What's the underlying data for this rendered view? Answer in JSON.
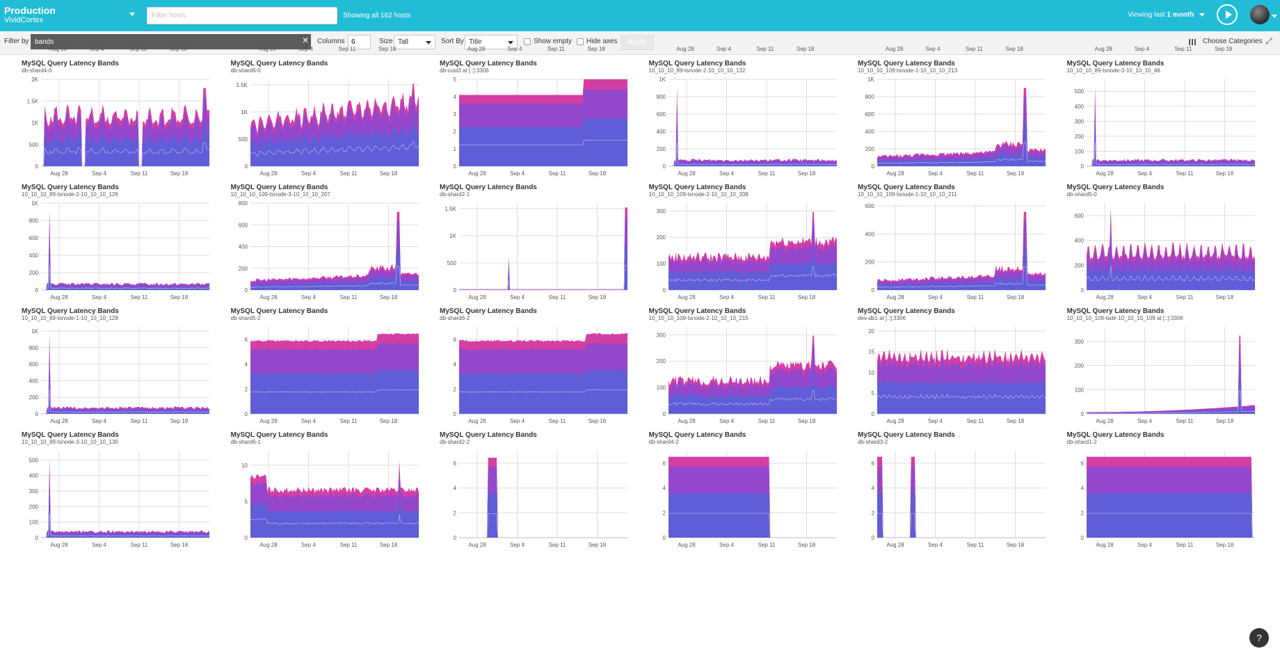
{
  "header": {
    "environment": "Production",
    "organization": "VividCortex",
    "host_filter_placeholder": "Filter hosts",
    "host_count_text": "Showing all 162 hosts",
    "viewing_prefix": "Viewing last",
    "viewing_period": "1 month"
  },
  "toolbar": {
    "filter_label": "Filter by",
    "filter_value": "bands",
    "columns_label": "Columns",
    "columns_value": "6",
    "size_label": "Size",
    "size_value": "Tall",
    "sort_label": "Sort By",
    "sort_value": "Title",
    "show_empty_label": "Show empty",
    "hide_axes_label": "Hide axes",
    "apply_label": "Apply",
    "choose_categories_label": "Choose Categories"
  },
  "colors": {
    "header": "#22bcd6",
    "band_low": "#5a5fd8",
    "band_mid": "#8f48cf",
    "band_high": "#d02f9c",
    "grid": "#dddddd"
  },
  "x_ticks": [
    "Aug 28",
    "Sep 4",
    "Sep 11",
    "Sep 18"
  ],
  "chart_data": [
    {
      "type": "area",
      "title": "MySQL Query Latency Bands",
      "host": "db-shard4-0",
      "y_ticks": [
        "0",
        "500",
        "1K",
        "1.5K",
        "2K"
      ],
      "ylim": [
        0,
        2000
      ],
      "pattern": "gaps"
    },
    {
      "type": "area",
      "title": "MySQL Query Latency Bands",
      "host": "db-shard6-0",
      "y_ticks": [
        "0",
        "500",
        "1K",
        "1.5K"
      ],
      "ylim": [
        0,
        1600
      ],
      "pattern": "rising"
    },
    {
      "type": "area",
      "title": "MySQL Query Latency Bands",
      "host": "db-cust3 at [::]:3306",
      "y_ticks": [
        "0",
        "1",
        "2",
        "3",
        "4",
        "5"
      ],
      "ylim": [
        0,
        5
      ],
      "pattern": "step"
    },
    {
      "type": "area",
      "title": "MySQL Query Latency Bands",
      "host": "10_10_10_89-tsnode-2-10_10_10_132",
      "y_ticks": [
        "0",
        "200",
        "400",
        "600",
        "800",
        "1K"
      ],
      "ylim": [
        0,
        1000
      ],
      "pattern": "spike-early"
    },
    {
      "type": "area",
      "title": "MySQL Query Latency Bands",
      "host": "10_10_10_109-tsnode-1-10_10_10_213",
      "y_ticks": [
        "0",
        "200",
        "400",
        "600",
        "800",
        "1K"
      ],
      "ylim": [
        0,
        1000
      ],
      "pattern": "spike-late"
    },
    {
      "type": "area",
      "title": "MySQL Query Latency Bands",
      "host": "10_10_10_89-tsnode-3-10_10_10_66",
      "y_ticks": [
        "0",
        "100",
        "200",
        "300",
        "400",
        "500"
      ],
      "ylim": [
        0,
        580
      ],
      "pattern": "spike-early"
    },
    {
      "type": "area",
      "title": "MySQL Query Latency Bands",
      "host": "10_10_10_89-tsnode-2-10_10_10_126",
      "y_ticks": [
        "0",
        "200",
        "400",
        "600",
        "800",
        "1K"
      ],
      "ylim": [
        0,
        1000
      ],
      "pattern": "spike-early"
    },
    {
      "type": "area",
      "title": "MySQL Query Latency Bands",
      "host": "10_10_10_109-tsnode-3-10_10_10_207",
      "y_ticks": [
        "0",
        "200",
        "400",
        "600",
        "800"
      ],
      "ylim": [
        0,
        800
      ],
      "pattern": "spike-late"
    },
    {
      "type": "area",
      "title": "MySQL Query Latency Bands",
      "host": "db-shard2-1",
      "y_ticks": [
        "0",
        "500",
        "1K",
        "1.5K"
      ],
      "ylim": [
        0,
        1600
      ],
      "pattern": "flat-spike"
    },
    {
      "type": "area",
      "title": "MySQL Query Latency Bands",
      "host": "10_10_10_109-tsnode-2-10_10_10_208",
      "y_ticks": [
        "0",
        "100",
        "200",
        "300"
      ],
      "ylim": [
        0,
        330
      ],
      "pattern": "noisy-rise"
    },
    {
      "type": "area",
      "title": "MySQL Query Latency Bands",
      "host": "10_10_10_109-tsnode-1-10_10_10_211",
      "y_ticks": [
        "0",
        "200",
        "400",
        "600"
      ],
      "ylim": [
        0,
        620
      ],
      "pattern": "spike-late"
    },
    {
      "type": "area",
      "title": "MySQL Query Latency Bands",
      "host": "db-shard5-0",
      "y_ticks": [
        "0",
        "200",
        "400",
        "600"
      ],
      "ylim": [
        0,
        700
      ],
      "pattern": "periodic"
    },
    {
      "type": "area",
      "title": "MySQL Query Latency Bands",
      "host": "10_10_10_89-tsnode-1-10_10_10_128",
      "y_ticks": [
        "0",
        "200",
        "400",
        "600",
        "800",
        "1K"
      ],
      "ylim": [
        0,
        1050
      ],
      "pattern": "spike-early"
    },
    {
      "type": "area",
      "title": "MySQL Query Latency Bands",
      "host": "db-shard5-2",
      "y_ticks": [
        "0",
        "2",
        "4",
        "6"
      ],
      "ylim": [
        0,
        7
      ],
      "pattern": "high-step"
    },
    {
      "type": "area",
      "title": "MySQL Query Latency Bands",
      "host": "db-shard6-2",
      "y_ticks": [
        "0",
        "2",
        "4",
        "6"
      ],
      "ylim": [
        0,
        7
      ],
      "pattern": "high-step"
    },
    {
      "type": "area",
      "title": "MySQL Query Latency Bands",
      "host": "10_10_10_109-tsnode-2-10_10_10_215",
      "y_ticks": [
        "0",
        "100",
        "200",
        "300"
      ],
      "ylim": [
        0,
        330
      ],
      "pattern": "noisy-rise"
    },
    {
      "type": "area",
      "title": "MySQL Query Latency Bands",
      "host": "dev-db1 at [::]:3306",
      "y_ticks": [
        "0",
        "5",
        "10",
        "15",
        "20"
      ],
      "ylim": [
        0,
        21
      ],
      "pattern": "dense"
    },
    {
      "type": "area",
      "title": "MySQL Query Latency Bands",
      "host": "10_10_10_109-tsdir-10_10_10_109 at [::]:3306",
      "y_ticks": [
        "0",
        "100",
        "200",
        "300"
      ],
      "ylim": [
        0,
        360
      ],
      "pattern": "low-spike-late"
    },
    {
      "type": "area",
      "title": "MySQL Query Latency Bands",
      "host": "10_10_10_89-tsnode-3-10_10_10_130",
      "y_ticks": [
        "0",
        "100",
        "200",
        "300",
        "400",
        "500"
      ],
      "ylim": [
        0,
        560
      ],
      "pattern": "spike-early"
    },
    {
      "type": "area",
      "title": "MySQL Query Latency Bands",
      "host": "db-shard6-1",
      "y_ticks": [
        "0",
        "5",
        "10"
      ],
      "ylim": [
        0,
        12
      ],
      "pattern": "mid-noisy"
    },
    {
      "type": "area",
      "title": "MySQL Query Latency Bands",
      "host": "db-shard2-2",
      "y_ticks": [
        "0",
        "2",
        "4",
        "6"
      ],
      "ylim": [
        0,
        7
      ],
      "pattern": "narrow"
    },
    {
      "type": "area",
      "title": "MySQL Query Latency Bands",
      "host": "db-shard4-2",
      "y_ticks": [
        "0",
        "2",
        "4",
        "6"
      ],
      "ylim": [
        0,
        7
      ],
      "pattern": "half"
    },
    {
      "type": "area",
      "title": "MySQL Query Latency Bands",
      "host": "db-shard3-2",
      "y_ticks": [
        "0",
        "2",
        "4",
        "6"
      ],
      "ylim": [
        0,
        7
      ],
      "pattern": "two-narrow"
    },
    {
      "type": "area",
      "title": "MySQL Query Latency Bands",
      "host": "db-shard1-2",
      "y_ticks": [
        "0",
        "2",
        "4",
        "6"
      ],
      "ylim": [
        0,
        7
      ],
      "pattern": "full-end"
    }
  ]
}
